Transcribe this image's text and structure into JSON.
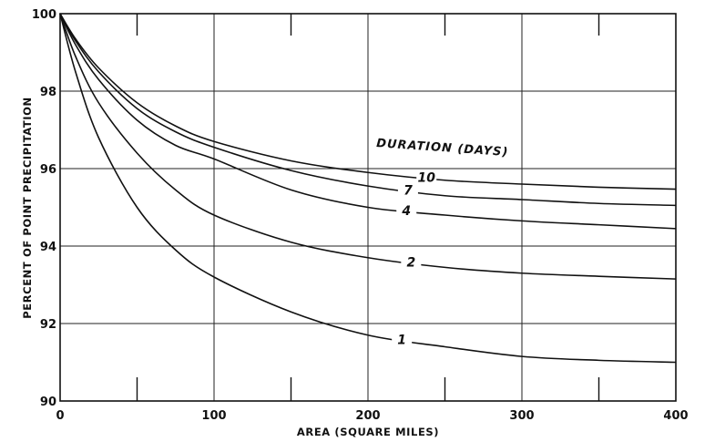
{
  "chart_data": {
    "type": "line",
    "xlabel": "AREA (SQUARE MILES)",
    "ylabel": "PERCENT OF POINT PRECIPITATION",
    "legend_title": "DURATION (DAYS)",
    "xlim": [
      0,
      400
    ],
    "ylim": [
      90,
      100
    ],
    "x_ticks": [
      "0",
      "100",
      "200",
      "300",
      "400"
    ],
    "y_ticks": [
      "90",
      "92",
      "94",
      "96",
      "98",
      "100"
    ],
    "grid": true,
    "series": [
      {
        "name": "1",
        "x": [
          0,
          10,
          25,
          50,
          75,
          100,
          150,
          200,
          250,
          300,
          350,
          400
        ],
        "values": [
          100,
          98.5,
          96.8,
          95.0,
          93.9,
          93.2,
          92.3,
          91.7,
          91.4,
          91.15,
          91.05,
          91.0
        ]
      },
      {
        "name": "2",
        "x": [
          0,
          10,
          25,
          50,
          75,
          100,
          150,
          200,
          250,
          300,
          350,
          400
        ],
        "values": [
          100,
          98.9,
          97.7,
          96.4,
          95.45,
          94.8,
          94.1,
          93.7,
          93.45,
          93.3,
          93.22,
          93.15
        ]
      },
      {
        "name": "4",
        "x": [
          0,
          10,
          25,
          50,
          75,
          100,
          150,
          200,
          250,
          300,
          350,
          400
        ],
        "values": [
          100,
          99.2,
          98.3,
          97.25,
          96.6,
          96.25,
          95.45,
          95.0,
          94.8,
          94.65,
          94.55,
          94.45
        ]
      },
      {
        "name": "7",
        "x": [
          0,
          10,
          25,
          50,
          75,
          100,
          150,
          200,
          250,
          300,
          350,
          400
        ],
        "values": [
          100,
          99.3,
          98.5,
          97.55,
          96.95,
          96.55,
          95.95,
          95.55,
          95.3,
          95.2,
          95.1,
          95.05
        ]
      },
      {
        "name": "10",
        "x": [
          0,
          10,
          25,
          50,
          75,
          100,
          150,
          200,
          250,
          300,
          350,
          400
        ],
        "values": [
          100,
          99.35,
          98.6,
          97.7,
          97.1,
          96.7,
          96.2,
          95.9,
          95.7,
          95.6,
          95.52,
          95.47
        ]
      }
    ]
  }
}
